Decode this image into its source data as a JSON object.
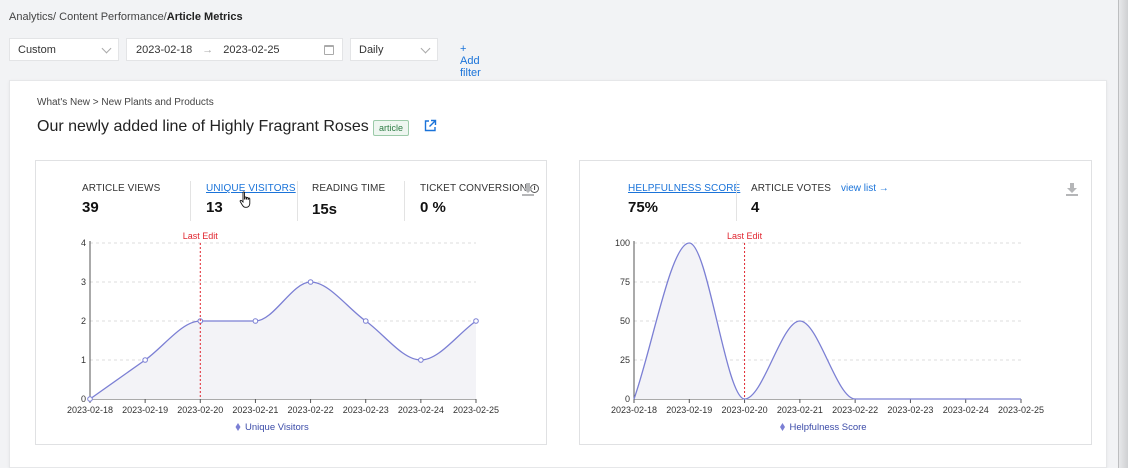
{
  "breadcrumb": {
    "path": "Analytics/ Content Performance/",
    "current": "Article Metrics"
  },
  "filters": {
    "range_select": "Custom",
    "date_start": "2023-02-18",
    "date_end": "2023-02-25",
    "granularity": "Daily",
    "add_filter": "+ Add filter"
  },
  "article": {
    "crumb": "What's New > New Plants and Products",
    "title": "Our newly added line of Highly Fragrant Roses",
    "tag": "article"
  },
  "left_panel": {
    "metrics": [
      {
        "label": "ARTICLE VIEWS",
        "value": "39"
      },
      {
        "label": "UNIQUE VISITORS",
        "value": "13"
      },
      {
        "label": "READING TIME",
        "value": "15s"
      },
      {
        "label": "TICKET CONVERSION",
        "value": "0 %"
      }
    ],
    "info_glyph": "i"
  },
  "right_panel": {
    "metrics": [
      {
        "label": "HELPFULNESS SCORE",
        "value": "75%"
      },
      {
        "label": "ARTICLE VOTES",
        "value": "4"
      }
    ],
    "view_list": "view list"
  },
  "icons": {
    "external_link": "external-link-icon",
    "download": "download-icon",
    "info": "info-icon",
    "calendar": "calendar-icon",
    "cursor": "hand-cursor-icon"
  },
  "colors": {
    "series": "#7b7fd4",
    "fill": "#f3f3f7",
    "annotation": "#e0242e",
    "link": "#1a73d9"
  },
  "chart_data": [
    {
      "type": "area",
      "x": [
        "2023-02-18",
        "2023-02-19",
        "2023-02-20",
        "2023-02-21",
        "2023-02-22",
        "2023-02-23",
        "2023-02-24",
        "2023-02-25"
      ],
      "series": [
        {
          "name": "Unique Visitors",
          "values": [
            0,
            1,
            2,
            2,
            3,
            2,
            1,
            2
          ]
        }
      ],
      "ylim": [
        0,
        4
      ],
      "yticks": [
        0,
        1,
        2,
        3,
        4
      ],
      "grid": true,
      "legend": "bottom",
      "annotation": {
        "label": "Last Edit",
        "x": "2023-02-20"
      }
    },
    {
      "type": "area",
      "x": [
        "2023-02-18",
        "2023-02-19",
        "2023-02-20",
        "2023-02-21",
        "2023-02-22",
        "2023-02-23",
        "2023-02-24",
        "2023-02-25"
      ],
      "series": [
        {
          "name": "Helpfulness Score",
          "values": [
            0,
            100,
            0,
            50,
            0,
            0,
            0,
            0
          ]
        }
      ],
      "ylim": [
        0,
        100
      ],
      "yticks": [
        0,
        25,
        50,
        75,
        100
      ],
      "grid": true,
      "legend": "bottom",
      "annotation": {
        "label": "Last Edit",
        "x": "2023-02-20"
      }
    }
  ]
}
